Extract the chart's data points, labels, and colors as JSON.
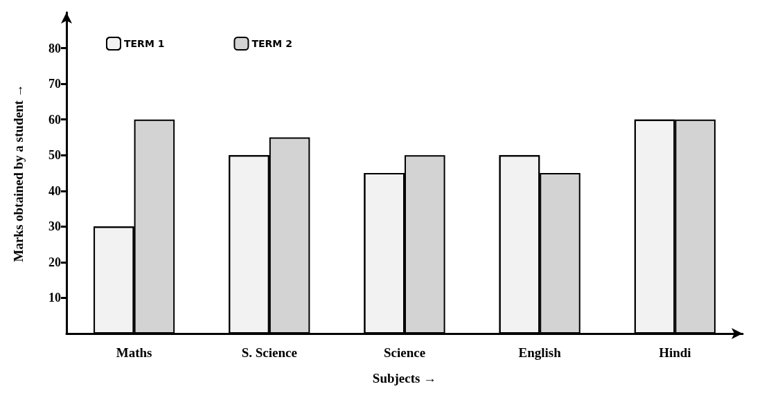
{
  "chart_data": {
    "type": "bar",
    "xlabel": "Subjects →",
    "ylabel": "Marks obtained by a student →",
    "categories": [
      "Maths",
      "S. Science",
      "Science",
      "English",
      "Hindi"
    ],
    "series": [
      {
        "name": "TERM 1",
        "color": "#f2f2f2",
        "values": [
          30,
          50,
          45,
          50,
          60
        ]
      },
      {
        "name": "TERM 2",
        "color": "#d3d3d3",
        "values": [
          60,
          55,
          50,
          45,
          60
        ]
      }
    ],
    "ylim": [
      0,
      90
    ],
    "yticks": [
      10,
      20,
      30,
      40,
      50,
      60,
      70,
      80
    ],
    "grid": false,
    "legend": "top left"
  }
}
